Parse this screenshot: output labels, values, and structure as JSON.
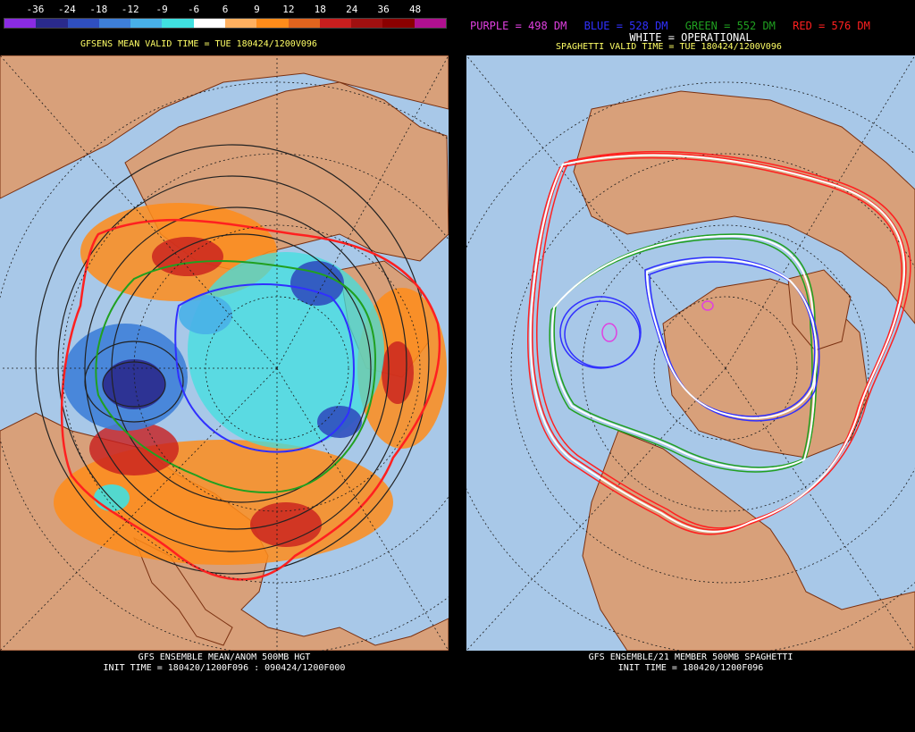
{
  "left": {
    "colorbar": {
      "labels": [
        "-36",
        "-24",
        "-18",
        "-12",
        "-9",
        "-6",
        "6",
        "9",
        "12",
        "18",
        "24",
        "36",
        "48"
      ],
      "colors": [
        "#8a2be2",
        "#2a2a8c",
        "#2f4fbf",
        "#3e7fd8",
        "#48b0e8",
        "#40e0e0",
        "#ffffff",
        "#ffb060",
        "#ff8c1a",
        "#e0641e",
        "#c81e1e",
        "#a01010",
        "#8b0000",
        "#b01090"
      ]
    },
    "valid_title": "GFSENS MEAN VALID TIME = TUE 180424/1200V096",
    "footer_line1": "GFS ENSEMBLE MEAN/ANOM 500MB HGT",
    "footer_line2": "INIT TIME = 180420/1200F096 : 090424/1200F000"
  },
  "right": {
    "legend": {
      "purple": "PURPLE = 498 DM",
      "blue": "BLUE = 528 DM",
      "green": "GREEN = 552 DM",
      "red": "RED = 576 DM",
      "white": "WHITE = OPERATIONAL"
    },
    "legend_colors": {
      "purple": "#e040e0",
      "blue": "#3030ff",
      "green": "#20a020",
      "red": "#ff2020",
      "white": "#ffffff"
    },
    "valid_title": "SPAGHETTI VALID TIME = TUE 180424/1200V096",
    "footer_line1": "GFS ENSEMBLE/21 MEMBER 500MB SPAGHETTI",
    "footer_line2": "INIT TIME = 180420/1200F096"
  },
  "map_colors": {
    "ocean": "#a8c8e8",
    "land": "#d8a07a",
    "border": "#7a3010",
    "grid": "#1a1a1a"
  }
}
